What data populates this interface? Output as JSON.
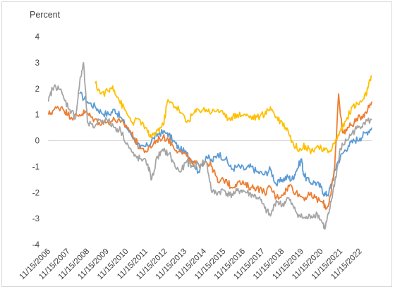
{
  "chart_data": {
    "type": "line",
    "ylabel": "Percent",
    "ylim": [
      -4,
      4
    ],
    "yticks": [
      4,
      3,
      2,
      1,
      0,
      -1,
      -2,
      -3,
      -4
    ],
    "x_tick_labels": [
      "11/15/2006",
      "11/15/2007",
      "11/15/2008",
      "11/15/2009",
      "11/15/2010",
      "11/15/2011",
      "11/15/2012",
      "11/15/2013",
      "11/15/2014",
      "11/15/2015",
      "11/15/2016",
      "11/15/2017",
      "11/15/2018",
      "11/15/2019",
      "11/15/2020",
      "11/15/2021",
      "11/15/2022"
    ],
    "x_start": 2006.874,
    "x_end": 2023.5,
    "grid": "none",
    "legend": "none",
    "series": [
      {
        "color": "#5b9bd5",
        "x": [
          2008.5,
          2008.9,
          2009.3,
          2009.6,
          2010.0,
          2010.3,
          2010.6,
          2011.0,
          2011.3,
          2011.6,
          2012.0,
          2012.3,
          2012.6,
          2013.0,
          2013.3,
          2013.6,
          2014.0,
          2014.3,
          2014.6,
          2015.0,
          2015.3,
          2015.6,
          2016.0,
          2016.3,
          2016.6,
          2017.0,
          2017.3,
          2017.6,
          2018.0,
          2018.3,
          2018.6,
          2018.9,
          2019.2,
          2019.4,
          2019.6,
          2019.9,
          2020.0,
          2020.3,
          2020.6,
          2020.9,
          2021.1,
          2021.3,
          2021.5,
          2021.7,
          2022.0,
          2022.3,
          2022.6,
          2022.9,
          2023.2,
          2023.5
        ],
        "y": [
          1.8,
          1.5,
          1.3,
          1.1,
          1.0,
          1.2,
          0.9,
          0.4,
          0.1,
          -0.3,
          -0.2,
          0.1,
          0.3,
          0.3,
          0.0,
          -0.3,
          -0.5,
          -0.8,
          -1.2,
          -0.6,
          -0.8,
          -0.5,
          -0.7,
          -1.1,
          -1.0,
          -1.1,
          -1.0,
          -1.2,
          -1.3,
          -1.1,
          -1.7,
          -1.5,
          -1.4,
          -1.5,
          -1.2,
          -0.7,
          -1.3,
          -1.6,
          -1.6,
          -1.8,
          -2.1,
          -2.0,
          -1.5,
          -0.9,
          -0.5,
          -0.2,
          0.0,
          0.1,
          0.3,
          0.5
        ]
      },
      {
        "color": "#ed7d31",
        "x": [
          2006.9,
          2007.2,
          2007.6,
          2007.9,
          2008.2,
          2008.5,
          2008.8,
          2009.1,
          2009.5,
          2009.9,
          2010.3,
          2010.6,
          2011.0,
          2011.3,
          2011.6,
          2012.0,
          2012.3,
          2012.6,
          2013.0,
          2013.3,
          2013.6,
          2014.0,
          2014.3,
          2014.6,
          2015.0,
          2015.3,
          2015.6,
          2016.0,
          2016.3,
          2016.6,
          2017.0,
          2017.3,
          2017.6,
          2018.0,
          2018.3,
          2018.6,
          2019.0,
          2019.3,
          2019.6,
          2020.0,
          2020.3,
          2020.6,
          2021.0,
          2021.2,
          2021.4,
          2021.6,
          2021.8,
          2022.0,
          2022.3,
          2022.6,
          2022.9,
          2023.2,
          2023.5
        ],
        "y": [
          1.0,
          1.2,
          1.3,
          1.0,
          0.9,
          1.0,
          1.1,
          0.9,
          0.7,
          0.7,
          0.8,
          0.7,
          0.5,
          0.1,
          -0.3,
          -0.4,
          -0.1,
          0.1,
          0.1,
          -0.2,
          -0.4,
          -0.6,
          -0.9,
          -0.9,
          -0.8,
          -1.0,
          -1.6,
          -1.5,
          -1.8,
          -1.6,
          -1.7,
          -1.8,
          -1.8,
          -2.0,
          -1.8,
          -2.2,
          -2.0,
          -1.7,
          -2.0,
          -2.2,
          -2.1,
          -2.2,
          -2.4,
          -2.6,
          -2.1,
          -1.0,
          1.8,
          0.3,
          0.5,
          0.7,
          0.9,
          1.1,
          1.5
        ]
      },
      {
        "color": "#a5a5a5",
        "x": [
          2006.9,
          2007.1,
          2007.4,
          2007.7,
          2008.0,
          2008.3,
          2008.5,
          2008.7,
          2008.9,
          2009.2,
          2009.5,
          2009.9,
          2010.3,
          2010.6,
          2011.0,
          2011.3,
          2011.6,
          2012.0,
          2012.2,
          2012.5,
          2012.8,
          2013.1,
          2013.4,
          2013.7,
          2014.0,
          2014.3,
          2014.6,
          2015.0,
          2015.3,
          2015.6,
          2015.9,
          2016.2,
          2016.5,
          2016.8,
          2017.1,
          2017.4,
          2017.7,
          2018.0,
          2018.3,
          2018.6,
          2018.9,
          2019.2,
          2019.5,
          2019.8,
          2020.1,
          2020.4,
          2020.7,
          2021.0,
          2021.1,
          2021.3,
          2021.5,
          2021.7,
          2021.9,
          2022.2,
          2022.5,
          2022.8,
          2023.1,
          2023.5
        ],
        "y": [
          1.5,
          2.0,
          2.1,
          1.6,
          1.2,
          0.9,
          2.2,
          3.0,
          0.7,
          0.5,
          0.8,
          0.8,
          0.5,
          0.4,
          -0.2,
          -0.6,
          -0.7,
          -0.9,
          -1.5,
          -0.6,
          -0.4,
          -0.5,
          -1.0,
          -1.2,
          -0.8,
          -1.0,
          -0.9,
          -0.8,
          -2.0,
          -2.0,
          -1.9,
          -2.1,
          -2.0,
          -1.9,
          -2.0,
          -2.1,
          -2.2,
          -2.6,
          -2.9,
          -2.3,
          -2.5,
          -2.2,
          -2.6,
          -2.9,
          -3.0,
          -2.9,
          -2.8,
          -3.2,
          -3.4,
          -2.8,
          -2.0,
          -1.2,
          -0.3,
          0.0,
          0.3,
          0.5,
          0.7,
          0.8
        ]
      },
      {
        "color": "#ffc000",
        "x": [
          2009.3,
          2009.6,
          2010.0,
          2010.2,
          2010.5,
          2010.8,
          2011.2,
          2011.6,
          2012.0,
          2012.2,
          2012.5,
          2012.8,
          2013.0,
          2013.3,
          2013.6,
          2014.0,
          2014.3,
          2014.6,
          2015.0,
          2015.3,
          2015.6,
          2016.0,
          2016.3,
          2016.6,
          2017.0,
          2017.3,
          2017.6,
          2018.0,
          2018.3,
          2018.6,
          2018.9,
          2019.2,
          2019.5,
          2019.8,
          2020.1,
          2020.4,
          2020.7,
          2021.0,
          2021.3,
          2021.6,
          2021.9,
          2022.2,
          2022.5,
          2022.8,
          2023.1,
          2023.3,
          2023.5
        ],
        "y": [
          2.2,
          1.8,
          1.9,
          2.1,
          1.6,
          1.2,
          0.7,
          0.8,
          0.3,
          0.1,
          0.4,
          0.6,
          1.5,
          1.4,
          1.2,
          0.7,
          1.0,
          1.2,
          1.2,
          1.1,
          1.2,
          0.9,
          0.9,
          1.0,
          1.0,
          0.9,
          0.9,
          1.0,
          1.3,
          0.9,
          0.7,
          0.4,
          -0.2,
          -0.3,
          -0.2,
          -0.4,
          -0.2,
          -0.4,
          -0.4,
          -0.1,
          0.4,
          0.8,
          1.3,
          1.4,
          1.6,
          2.0,
          2.5
        ]
      }
    ]
  }
}
